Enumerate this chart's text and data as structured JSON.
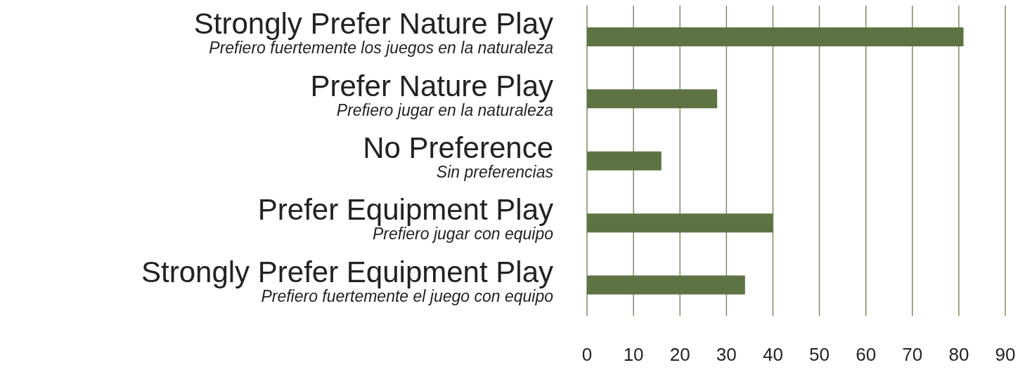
{
  "chart_data": {
    "type": "bar",
    "orientation": "horizontal",
    "categories": [
      "Strongly Prefer Nature Play\nPrefiero fuertemente los juegos en la naturaleza",
      "Prefer Nature Play\nPrefiero jugar en la naturaleza",
      "No Preference\nSin preferencias",
      "Prefer Equipment Play\nPrefiero jugar con equipo",
      "Strongly Prefer Equipment Play\nPrefiero fuertemente el juego con equipo"
    ],
    "values": [
      81,
      28,
      16,
      40,
      34
    ],
    "color": "#5e7343",
    "xlim": [
      0,
      90
    ],
    "xticks": [
      0,
      10,
      20,
      30,
      40,
      50,
      60,
      70,
      80,
      90
    ],
    "grid": "x",
    "legend": false
  }
}
